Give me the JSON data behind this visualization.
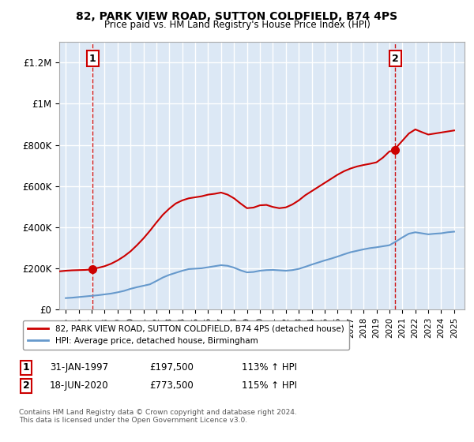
{
  "title": "82, PARK VIEW ROAD, SUTTON COLDFIELD, B74 4PS",
  "subtitle": "Price paid vs. HM Land Registry's House Price Index (HPI)",
  "legend_line1": "82, PARK VIEW ROAD, SUTTON COLDFIELD, B74 4PS (detached house)",
  "legend_line2": "HPI: Average price, detached house, Birmingham",
  "footer": "Contains HM Land Registry data © Crown copyright and database right 2024.\nThis data is licensed under the Open Government Licence v3.0.",
  "annotation1": {
    "label": "1",
    "x_year": 1997.08,
    "price": 197500,
    "text": "31-JAN-1997",
    "price_text": "£197,500",
    "hpi_text": "113% ↑ HPI"
  },
  "annotation2": {
    "label": "2",
    "x_year": 2020.46,
    "price": 773500,
    "text": "18-JUN-2020",
    "price_text": "£773,500",
    "hpi_text": "115% ↑ HPI"
  },
  "red_color": "#cc0000",
  "blue_color": "#6699cc",
  "plot_bg": "#dce8f5",
  "grid_color": "#ffffff",
  "fig_bg": "#ffffff",
  "ylim": [
    0,
    1300000
  ],
  "yticks": [
    0,
    200000,
    400000,
    600000,
    800000,
    1000000,
    1200000
  ],
  "ytick_labels": [
    "£0",
    "£200K",
    "£400K",
    "£600K",
    "£800K",
    "£1M",
    "£1.2M"
  ],
  "xlim_start": 1994.5,
  "xlim_end": 2025.8,
  "hpi_years": [
    1995,
    1995.5,
    1996,
    1996.5,
    1997,
    1997.5,
    1998,
    1998.5,
    1999,
    1999.5,
    2000,
    2000.5,
    2001,
    2001.5,
    2002,
    2002.5,
    2003,
    2003.5,
    2004,
    2004.5,
    2005,
    2005.5,
    2006,
    2006.5,
    2007,
    2007.5,
    2008,
    2008.5,
    2009,
    2009.5,
    2010,
    2010.5,
    2011,
    2011.5,
    2012,
    2012.5,
    2013,
    2013.5,
    2014,
    2014.5,
    2015,
    2015.5,
    2016,
    2016.5,
    2017,
    2017.5,
    2018,
    2018.5,
    2019,
    2019.5,
    2020,
    2020.5,
    2021,
    2021.5,
    2022,
    2022.5,
    2023,
    2023.5,
    2024,
    2024.5,
    2025
  ],
  "hpi_values": [
    55000,
    57000,
    60000,
    63000,
    66000,
    69000,
    73000,
    77000,
    83000,
    90000,
    100000,
    108000,
    115000,
    122000,
    138000,
    155000,
    168000,
    178000,
    188000,
    196000,
    198000,
    200000,
    205000,
    210000,
    215000,
    212000,
    203000,
    190000,
    180000,
    182000,
    188000,
    191000,
    192000,
    190000,
    188000,
    191000,
    197000,
    207000,
    218000,
    228000,
    238000,
    247000,
    257000,
    268000,
    278000,
    285000,
    292000,
    298000,
    302000,
    307000,
    312000,
    330000,
    350000,
    368000,
    375000,
    370000,
    365000,
    368000,
    370000,
    375000,
    378000
  ],
  "red_years": [
    1994.5,
    1995,
    1995.5,
    1996,
    1996.5,
    1997,
    1997.08,
    1997.5,
    1998,
    1998.5,
    1999,
    1999.5,
    2000,
    2000.5,
    2001,
    2001.5,
    2002,
    2002.5,
    2003,
    2003.5,
    2004,
    2004.5,
    2005,
    2005.5,
    2006,
    2006.5,
    2007,
    2007.5,
    2008,
    2008.5,
    2009,
    2009.5,
    2010,
    2010.5,
    2011,
    2011.5,
    2012,
    2012.5,
    2013,
    2013.5,
    2014,
    2014.5,
    2015,
    2015.5,
    2016,
    2016.5,
    2017,
    2017.5,
    2018,
    2018.5,
    2019,
    2019.5,
    2020,
    2020.46,
    2020.5,
    2021,
    2021.5,
    2022,
    2022.5,
    2023,
    2023.5,
    2024,
    2024.5,
    2025
  ],
  "red_values": [
    185000,
    188000,
    190000,
    191000,
    192000,
    194000,
    197500,
    202000,
    210000,
    222000,
    238000,
    258000,
    282000,
    312000,
    345000,
    382000,
    422000,
    460000,
    490000,
    515000,
    530000,
    540000,
    545000,
    550000,
    558000,
    562000,
    568000,
    558000,
    540000,
    515000,
    492000,
    495000,
    506000,
    508000,
    498000,
    492000,
    496000,
    510000,
    530000,
    555000,
    575000,
    595000,
    615000,
    635000,
    655000,
    672000,
    685000,
    695000,
    702000,
    708000,
    715000,
    738000,
    768000,
    773500,
    785000,
    820000,
    855000,
    875000,
    862000,
    850000,
    855000,
    860000,
    865000,
    870000
  ],
  "xtick_years": [
    1995,
    1996,
    1997,
    1998,
    1999,
    2000,
    2001,
    2002,
    2003,
    2004,
    2005,
    2006,
    2007,
    2008,
    2009,
    2010,
    2011,
    2012,
    2013,
    2014,
    2015,
    2016,
    2017,
    2018,
    2019,
    2020,
    2021,
    2022,
    2023,
    2024,
    2025
  ]
}
